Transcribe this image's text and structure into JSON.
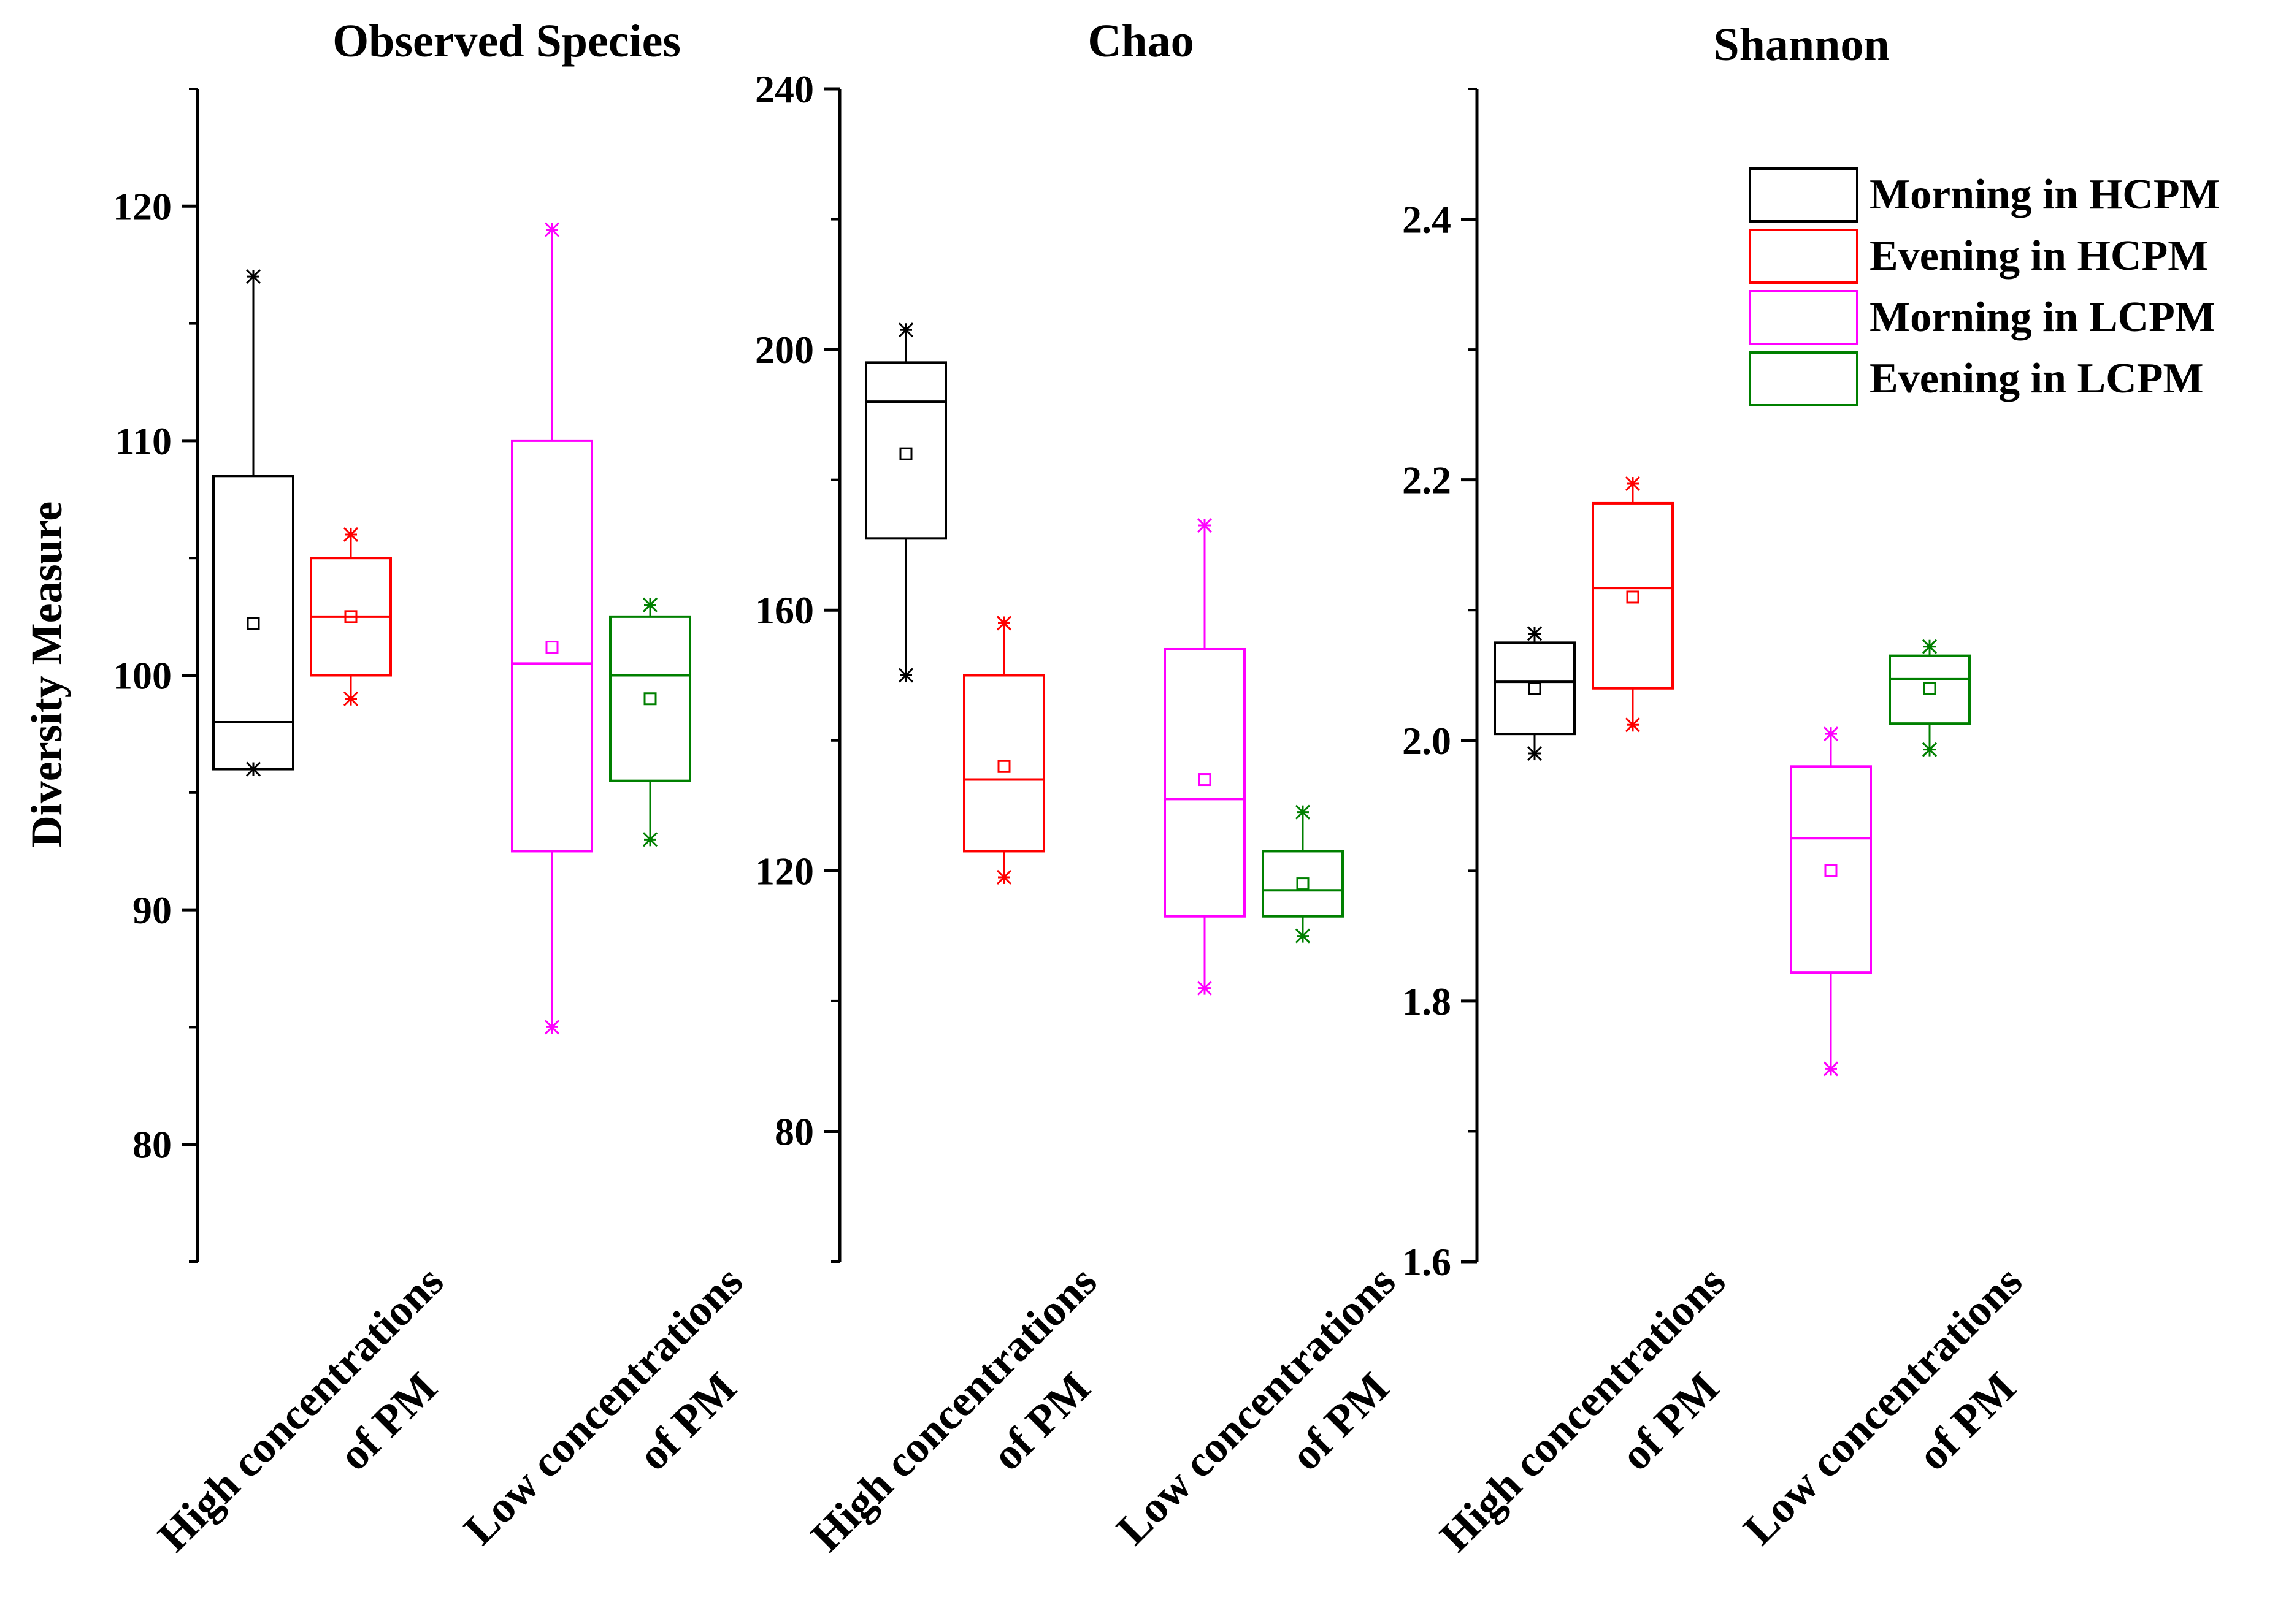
{
  "chart_data": {
    "type": "box",
    "ylabel": "Diversity Measure",
    "categories": [
      "High concentrations of PM",
      "Low concentrations of PM"
    ],
    "category_lines": [
      [
        "High concentrations",
        "of PM"
      ],
      [
        "Low concentrations",
        "of PM"
      ]
    ],
    "legend": [
      {
        "name": "Morning in HCPM",
        "color": "#000000"
      },
      {
        "name": "Evening in HCPM",
        "color": "#ff0000"
      },
      {
        "name": "Morning in LCPM",
        "color": "#ff00ff"
      },
      {
        "name": "Evening in LCPM",
        "color": "#008000"
      }
    ],
    "panels": [
      {
        "title": "Observed Species",
        "ylim": [
          75,
          125
        ],
        "yticks": [
          80,
          90,
          100,
          110,
          120
        ],
        "minor_step": 5,
        "ytick_labels": [
          "80",
          "90",
          "100",
          "110",
          "120"
        ],
        "boxes": [
          {
            "series": 0,
            "category": 0,
            "q1": 96,
            "median": 98,
            "q3": 108.5,
            "whisker_low": 96,
            "whisker_high": 117,
            "mean": 102.2,
            "min": 96,
            "max": 117
          },
          {
            "series": 1,
            "category": 0,
            "q1": 100,
            "median": 102.5,
            "q3": 105,
            "whisker_low": 99,
            "whisker_high": 106,
            "mean": 102.5,
            "min": 99,
            "max": 106
          },
          {
            "series": 2,
            "category": 1,
            "q1": 92.5,
            "median": 100.5,
            "q3": 110,
            "whisker_low": 85,
            "whisker_high": 119,
            "mean": 101.2,
            "min": 85,
            "max": 119
          },
          {
            "series": 3,
            "category": 1,
            "q1": 95.5,
            "median": 100,
            "q3": 102.5,
            "whisker_low": 93,
            "whisker_high": 103,
            "mean": 99,
            "min": 93,
            "max": 103
          }
        ]
      },
      {
        "title": "Chao",
        "ylim": [
          60,
          240
        ],
        "yticks": [
          80,
          120,
          160,
          200,
          240
        ],
        "minor_step": 20,
        "ytick_labels": [
          "80",
          "120",
          "160",
          "200",
          "240"
        ],
        "boxes": [
          {
            "series": 0,
            "category": 0,
            "q1": 171,
            "median": 192,
            "q3": 198,
            "whisker_low": 150,
            "whisker_high": 203,
            "mean": 184,
            "min": 150,
            "max": 203
          },
          {
            "series": 1,
            "category": 0,
            "q1": 123,
            "median": 134,
            "q3": 150,
            "whisker_low": 119,
            "whisker_high": 158,
            "mean": 136,
            "min": 119,
            "max": 158
          },
          {
            "series": 2,
            "category": 1,
            "q1": 113,
            "median": 131,
            "q3": 154,
            "whisker_low": 102,
            "whisker_high": 173,
            "mean": 134,
            "min": 102,
            "max": 173
          },
          {
            "series": 3,
            "category": 1,
            "q1": 113,
            "median": 117,
            "q3": 123,
            "whisker_low": 110,
            "whisker_high": 129,
            "mean": 118,
            "min": 110,
            "max": 129
          }
        ]
      },
      {
        "title": "Shannon",
        "ylim": [
          1.6,
          2.5
        ],
        "yticks": [
          1.6,
          1.8,
          2.0,
          2.2,
          2.4
        ],
        "minor_step": 0.1,
        "ytick_labels": [
          "1.6",
          "1.8",
          "2.0",
          "2.2",
          "2.4"
        ],
        "boxes": [
          {
            "series": 0,
            "category": 0,
            "q1": 2.005,
            "median": 2.045,
            "q3": 2.075,
            "whisker_low": 1.99,
            "whisker_high": 2.082,
            "mean": 2.04,
            "min": 1.99,
            "max": 2.082
          },
          {
            "series": 1,
            "category": 0,
            "q1": 2.04,
            "median": 2.117,
            "q3": 2.182,
            "whisker_low": 2.012,
            "whisker_high": 2.197,
            "mean": 2.11,
            "min": 2.012,
            "max": 2.197
          },
          {
            "series": 2,
            "category": 1,
            "q1": 1.822,
            "median": 1.925,
            "q3": 1.98,
            "whisker_low": 1.748,
            "whisker_high": 2.005,
            "mean": 1.9,
            "min": 1.748,
            "max": 2.005
          },
          {
            "series": 3,
            "category": 1,
            "q1": 2.013,
            "median": 2.047,
            "q3": 2.065,
            "whisker_low": 1.993,
            "whisker_high": 2.072,
            "mean": 2.04,
            "min": 1.993,
            "max": 2.072
          }
        ]
      }
    ]
  }
}
